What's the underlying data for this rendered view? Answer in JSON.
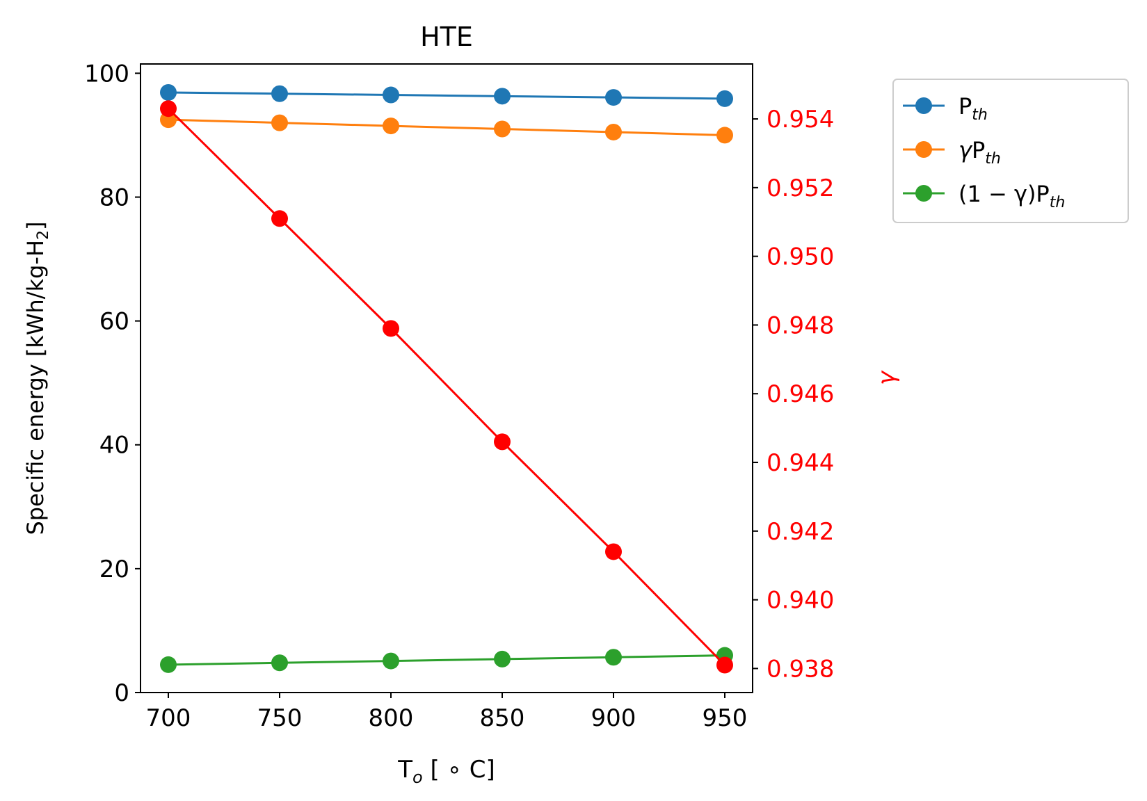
{
  "chart_data": {
    "type": "line",
    "title": "HTE",
    "xlabel": {
      "main": "T",
      "sub": "o",
      "unit": " [ ∘ C]"
    },
    "ylabel": {
      "main": "Specific energy [kWh/kg-H",
      "sub": "2",
      "close": "]"
    },
    "y2label": "γ",
    "x": [
      700,
      750,
      800,
      850,
      900,
      950
    ],
    "xticks": [
      "700",
      "750",
      "800",
      "850",
      "900",
      "950"
    ],
    "xlim": [
      687.5,
      962.5
    ],
    "ylim": [
      0,
      101.5
    ],
    "yticks": [
      "0",
      "20",
      "40",
      "60",
      "80",
      "100"
    ],
    "y2lim": [
      0.9373,
      0.9556
    ],
    "y2ticks": [
      "0.938",
      "0.940",
      "0.942",
      "0.944",
      "0.946",
      "0.948",
      "0.950",
      "0.952",
      "0.954"
    ],
    "series": [
      {
        "name": "P_th",
        "legend": {
          "pre": "",
          "main": "P",
          "sub": "th"
        },
        "color": "#1f77b4",
        "axis": "left",
        "values": [
          96.9,
          96.7,
          96.5,
          96.3,
          96.1,
          95.9
        ]
      },
      {
        "name": "γP_th",
        "legend": {
          "pre": "γ",
          "main": "P",
          "sub": "th"
        },
        "color": "#ff7f0e",
        "axis": "left",
        "values": [
          92.5,
          92.0,
          91.5,
          91.0,
          90.5,
          90.0
        ]
      },
      {
        "name": "(1 − γ)P_th",
        "legend": {
          "pre": "(1 − γ)",
          "main": "P",
          "sub": "th"
        },
        "color": "#2ca02c",
        "axis": "left",
        "values": [
          4.5,
          4.8,
          5.1,
          5.4,
          5.7,
          6.0
        ]
      },
      {
        "name": "γ",
        "color": "#ff0000",
        "axis": "right",
        "in_legend": false,
        "values": [
          0.9543,
          0.9511,
          0.9479,
          0.9446,
          0.9414,
          0.9381
        ]
      }
    ],
    "legend_position": "outside-right-top",
    "grid": false
  }
}
